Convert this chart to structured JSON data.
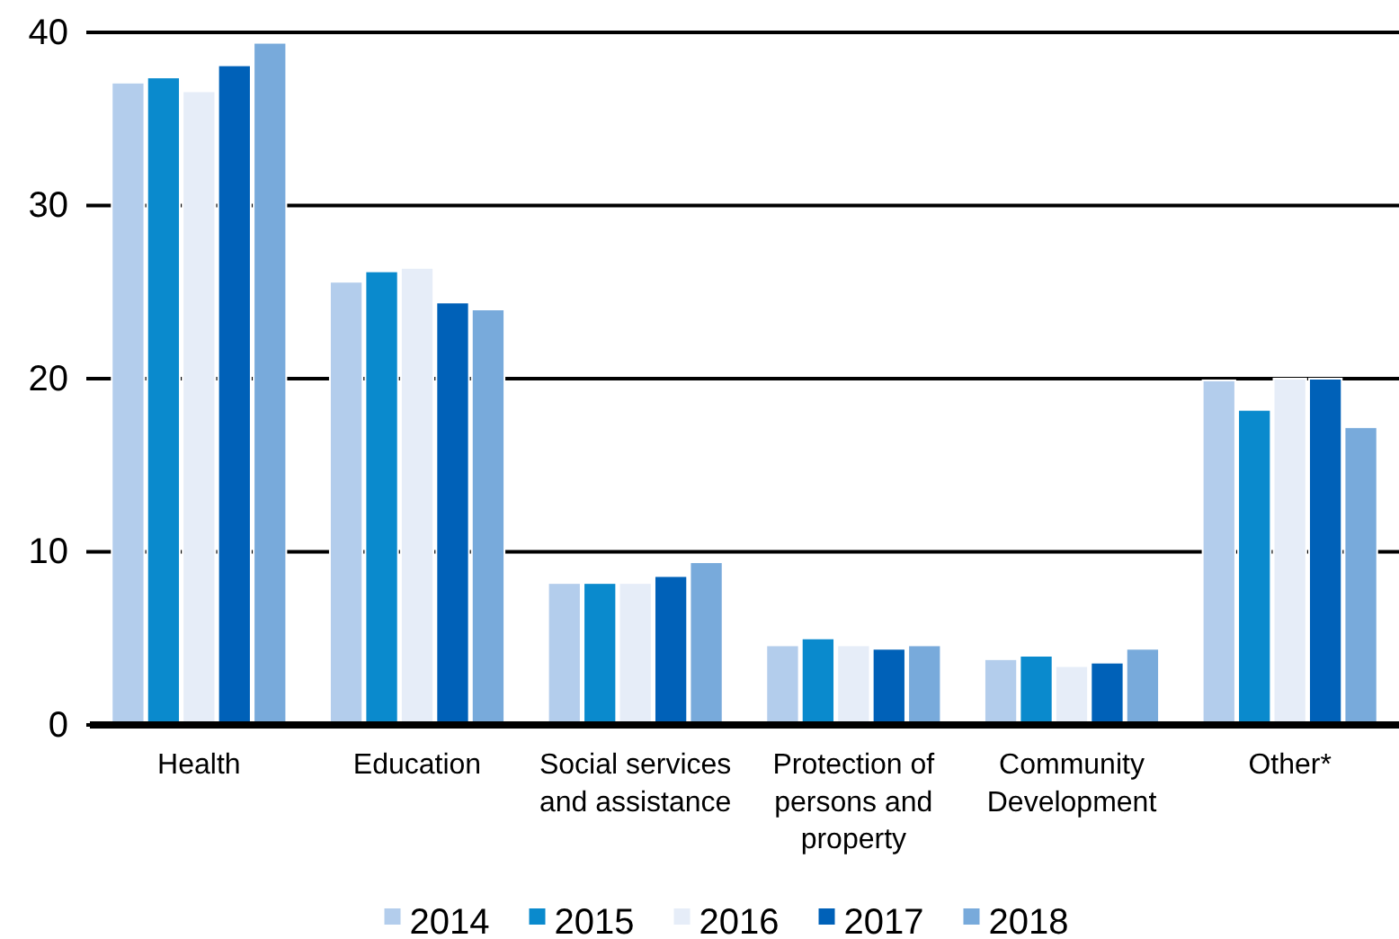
{
  "chart_data": {
    "type": "bar",
    "categories": [
      "Health",
      "Education",
      "Social services and assistance",
      "Protection of persons and property",
      "Community Development",
      "Other*"
    ],
    "series": [
      {
        "name": "2014",
        "color": "#b3cdec",
        "values": [
          37.1,
          25.6,
          8.2,
          4.6,
          3.8,
          19.9
        ]
      },
      {
        "name": "2015",
        "color": "#0a8acd",
        "values": [
          37.4,
          26.2,
          8.2,
          5.0,
          4.0,
          18.2
        ]
      },
      {
        "name": "2016",
        "color": "#e6edf8",
        "values": [
          36.6,
          26.4,
          8.2,
          4.6,
          3.4,
          20.0
        ]
      },
      {
        "name": "2017",
        "color": "#0061b8",
        "values": [
          38.1,
          24.4,
          8.6,
          4.4,
          3.6,
          20.0
        ]
      },
      {
        "name": "2018",
        "color": "#78aadb",
        "values": [
          39.4,
          24.0,
          9.4,
          4.6,
          4.4,
          17.2
        ]
      }
    ],
    "ylim": [
      0,
      40
    ],
    "yticks": [
      0,
      10,
      20,
      30,
      40
    ],
    "grid": "y",
    "legend": "bottom"
  }
}
